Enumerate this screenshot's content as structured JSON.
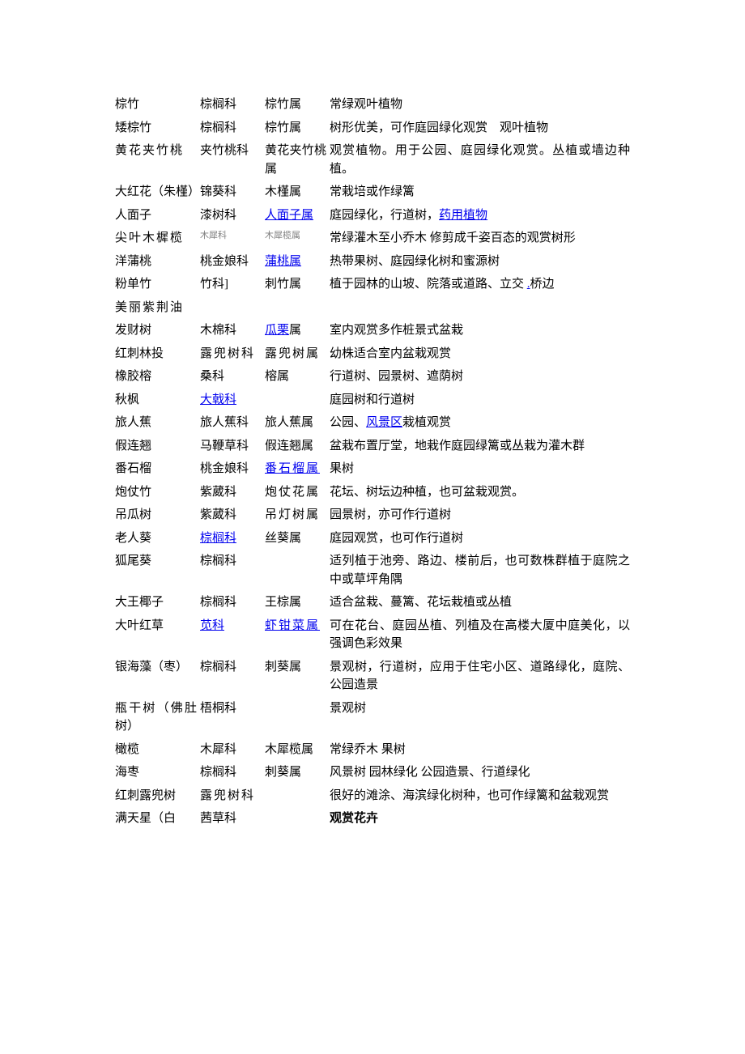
{
  "rows": [
    {
      "name": "棕竹",
      "family": "棕榈科",
      "genus": "棕竹属",
      "desc": "常绿观叶植物"
    },
    {
      "name": "矮棕竹",
      "family": "棕榈科",
      "genus": "棕竹属",
      "desc": "树形优美，可作庭园绿化观赏　观叶植物"
    },
    {
      "name": "黄花夹竹桃",
      "nameClass": "spaced",
      "family": "夹竹桃科",
      "genus": "黄花夹竹桃属",
      "desc": "观赏植物。用于公园、庭园绿化观赏。丛植或墙边种植。"
    },
    {
      "name": "大红花（朱槿）",
      "family": "锦葵科",
      "genus": "木槿属",
      "desc": "常栽培或作绿篱"
    },
    {
      "name": "人面子",
      "family": "漆树科",
      "genusParts": [
        {
          "text": "人面子属",
          "link": true
        }
      ],
      "descParts": [
        {
          "text": "庭园绿化，行道树，"
        },
        {
          "text": "药用植物",
          "link": true
        }
      ]
    },
    {
      "name": "尖叶木樨榄",
      "nameClass": "spaced",
      "family": "木犀科",
      "familyClass": "small-gray",
      "genus": "木犀榄属",
      "genusClass": "small-gray",
      "desc": "常绿灌木至小乔木  修剪成千姿百态的观赏树形"
    },
    {
      "name": "洋蒲桃",
      "family": "桃金娘科",
      "genusParts": [
        {
          "text": "蒲桃属",
          "link": true
        }
      ],
      "desc": "热带果树、庭园绿化树和蜜源树"
    },
    {
      "name": "粉单竹",
      "family": "竹科]",
      "genus": "刺竹属",
      "descParts": [
        {
          "text": "植于园林的山坡、院落或道路、立交 "
        },
        {
          "text": ".",
          "link": true
        },
        {
          "text": "桥边"
        }
      ]
    },
    {
      "name": "美丽紫荆油",
      "nameClass": "spaced",
      "family": "",
      "genus": "",
      "desc": ""
    },
    {
      "name": "发财树",
      "family": "木棉科",
      "genusParts": [
        {
          "text": "瓜栗",
          "link": true
        },
        {
          "text": "属"
        }
      ],
      "desc": "室内观赏多作桩景式盆栽"
    },
    {
      "name": "红刺林投",
      "family": "露兜树科",
      "familyClass": "spaced",
      "genus": "露兜树属",
      "genusClass": "spaced",
      "desc": "幼株适合室内盆栽观赏"
    },
    {
      "name": "橡胶榕",
      "family": "桑科",
      "genus": "榕属",
      "desc": "行道树、园景树、遮荫树"
    },
    {
      "name": "秋枫",
      "familyParts": [
        {
          "text": "大戟科",
          "link": true
        }
      ],
      "genus": "",
      "desc": "庭园树和行道树"
    },
    {
      "name": "旅人蕉",
      "family": "旅人蕉科",
      "genus": "旅人蕉属",
      "descParts": [
        {
          "text": "公园、"
        },
        {
          "text": "风景区",
          "link": true
        },
        {
          "text": "栽植观赏"
        }
      ]
    },
    {
      "name": "假连翘",
      "family": "马鞭草科",
      "genus": "假连翘属",
      "desc": "盆栽布置厅堂，地栽作庭园绿篱或丛栽为灌木群"
    },
    {
      "name": "番石榴",
      "family": "桃金娘科",
      "genusParts": [
        {
          "text": "番石榴属",
          "link": true
        }
      ],
      "genusClass": "spaced",
      "desc": "果树"
    },
    {
      "name": "炮仗竹",
      "family": "紫葳科",
      "genus": "炮仗花属",
      "genusClass": "spaced",
      "desc": "花坛、树坛边种植，也可盆栽观赏。"
    },
    {
      "name": "吊瓜树",
      "family": "紫葳科",
      "genus": "吊灯树属",
      "genusClass": "spaced",
      "desc": "园景树，亦可作行道树"
    },
    {
      "name": "老人葵",
      "familyParts": [
        {
          "text": "棕榈科",
          "link": true
        }
      ],
      "genus": "丝葵属",
      "desc": "庭园观赏，也可作行道树"
    },
    {
      "name": "狐尾葵",
      "family": "棕榈科",
      "genus": "",
      "desc": "适列植于池旁、路边、楼前后，也可数株群植于庭院之中或草坪角隅"
    },
    {
      "name": "大王椰子",
      "family": "棕榈科",
      "genus": "王棕属",
      "desc": "适合盆栽、蔓篱、花坛栽植或丛植"
    },
    {
      "name": "大叶红草",
      "familyParts": [
        {
          "text": "苋科",
          "link": true
        }
      ],
      "genusParts": [
        {
          "text": "虾钳菜属",
          "link": true
        }
      ],
      "genusClass": "spaced",
      "desc": "可在花台、庭园丛植、列植及在高楼大厦中庭美化，以强调色彩效果"
    },
    {
      "name": "银海藻（枣）",
      "family": "棕榈科",
      "genus": "刺葵属",
      "desc": "景观树，行道树，应用于住宅小区、道路绿化，庭院、公园造景"
    },
    {
      "name": "瓶干树（佛肚树）",
      "family": "梧桐科",
      "genus": "",
      "desc": "景观树"
    },
    {
      "name": "橄榄",
      "family": "木犀科",
      "genus": "木犀榄属",
      "desc": "常绿乔木  果树"
    },
    {
      "name": "海枣",
      "family": "棕榈科",
      "genus": "刺葵属",
      "desc": "风景树  园林绿化  公园造景、行道绿化"
    },
    {
      "name": "红刺露兜树",
      "family": "露兜树科",
      "familyClass": "spaced",
      "genus": "",
      "desc": "很好的滩涂、海滨绿化树种，也可作绿篱和盆栽观赏"
    },
    {
      "name": "满天星（白",
      "family": "茜草科",
      "genus": "",
      "desc": "观赏花卉",
      "descClass": "bold"
    }
  ]
}
